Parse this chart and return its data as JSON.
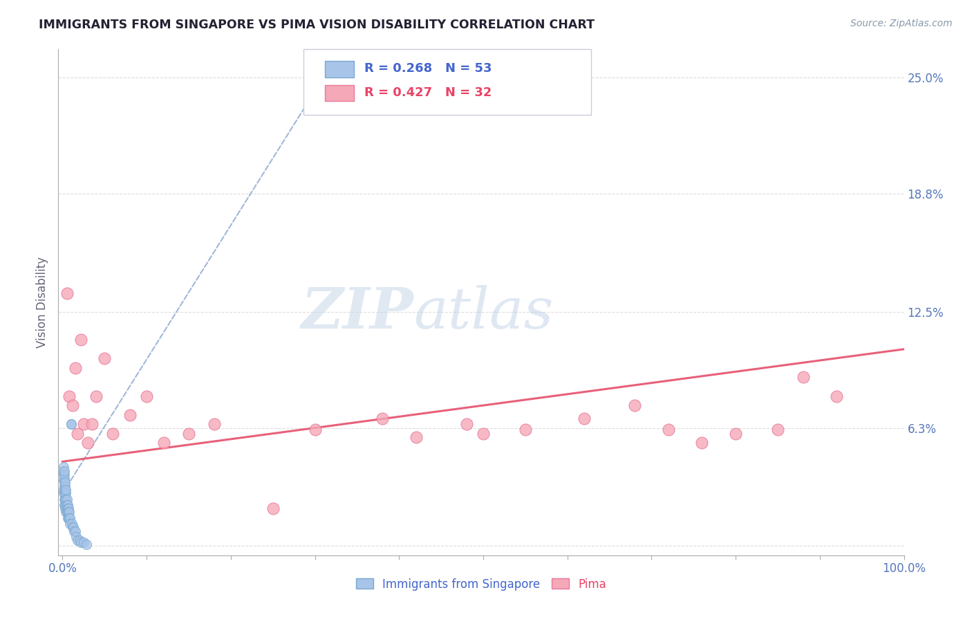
{
  "title": "IMMIGRANTS FROM SINGAPORE VS PIMA VISION DISABILITY CORRELATION CHART",
  "source_text": "Source: ZipAtlas.com",
  "ylabel": "Vision Disability",
  "xlim": [
    -0.005,
    1.0
  ],
  "ylim": [
    -0.005,
    0.265
  ],
  "yticks": [
    0.0,
    0.063,
    0.125,
    0.188,
    0.25
  ],
  "ytick_labels": [
    "",
    "6.3%",
    "12.5%",
    "18.8%",
    "25.0%"
  ],
  "xtick_labels": [
    "0.0%",
    "",
    "",
    "",
    "",
    "",
    "",
    "",
    "",
    "",
    "100.0%"
  ],
  "xticks": [
    0.0,
    0.1,
    0.2,
    0.3,
    0.4,
    0.5,
    0.6,
    0.7,
    0.8,
    0.9,
    1.0
  ],
  "legend_r1": "R = 0.268",
  "legend_n1": "N = 53",
  "legend_r2": "R = 0.427",
  "legend_n2": "N = 32",
  "series1_label": "Immigrants from Singapore",
  "series2_label": "Pima",
  "series1_color": "#a8c4e8",
  "series2_color": "#f5a8b8",
  "series1_edge": "#7aaad0",
  "series2_edge": "#e87898",
  "trendline1_color": "#a0b8d8",
  "trendline2_color": "#e8607a",
  "watermark_zip": "ZIP",
  "watermark_atlas": "atlas",
  "title_color": "#222233",
  "axis_label_color": "#5577bb",
  "grid_color": "#dddddd",
  "background_color": "#ffffff",
  "legend_border_color": "#ccccdd",
  "legend_text_color_blue": "#4466cc",
  "legend_text_color_pink": "#e84466",
  "sg_x": [
    0.001,
    0.001,
    0.001,
    0.001,
    0.001,
    0.001,
    0.002,
    0.002,
    0.002,
    0.002,
    0.002,
    0.002,
    0.002,
    0.003,
    0.003,
    0.003,
    0.003,
    0.003,
    0.003,
    0.003,
    0.004,
    0.004,
    0.004,
    0.004,
    0.004,
    0.005,
    0.005,
    0.005,
    0.005,
    0.006,
    0.006,
    0.006,
    0.006,
    0.007,
    0.007,
    0.007,
    0.008,
    0.008,
    0.009,
    0.009,
    0.01,
    0.01,
    0.011,
    0.012,
    0.013,
    0.014,
    0.015,
    0.016,
    0.018,
    0.02,
    0.022,
    0.025,
    0.028
  ],
  "sg_y": [
    0.035,
    0.038,
    0.04,
    0.042,
    0.028,
    0.03,
    0.032,
    0.034,
    0.036,
    0.038,
    0.04,
    0.025,
    0.022,
    0.03,
    0.032,
    0.034,
    0.028,
    0.025,
    0.022,
    0.02,
    0.028,
    0.03,
    0.025,
    0.022,
    0.018,
    0.025,
    0.022,
    0.02,
    0.018,
    0.022,
    0.02,
    0.018,
    0.015,
    0.02,
    0.018,
    0.015,
    0.018,
    0.015,
    0.015,
    0.012,
    0.065,
    0.065,
    0.012,
    0.01,
    0.01,
    0.008,
    0.008,
    0.005,
    0.003,
    0.003,
    0.002,
    0.002,
    0.001
  ],
  "pima_x": [
    0.005,
    0.008,
    0.012,
    0.015,
    0.018,
    0.022,
    0.025,
    0.03,
    0.035,
    0.04,
    0.05,
    0.06,
    0.08,
    0.1,
    0.12,
    0.15,
    0.18,
    0.25,
    0.3,
    0.38,
    0.42,
    0.48,
    0.5,
    0.55,
    0.62,
    0.68,
    0.72,
    0.76,
    0.8,
    0.85,
    0.88,
    0.92
  ],
  "pima_y": [
    0.135,
    0.08,
    0.075,
    0.095,
    0.06,
    0.11,
    0.065,
    0.055,
    0.065,
    0.08,
    0.1,
    0.06,
    0.07,
    0.08,
    0.055,
    0.06,
    0.065,
    0.02,
    0.062,
    0.068,
    0.058,
    0.065,
    0.06,
    0.062,
    0.068,
    0.075,
    0.062,
    0.055,
    0.06,
    0.062,
    0.09,
    0.08
  ],
  "sg_trend_x0": 0.0,
  "sg_trend_x1": 0.38,
  "pima_trend_x0": 0.0,
  "pima_trend_x1": 1.0,
  "pima_trend_y0": 0.045,
  "pima_trend_y1": 0.105
}
